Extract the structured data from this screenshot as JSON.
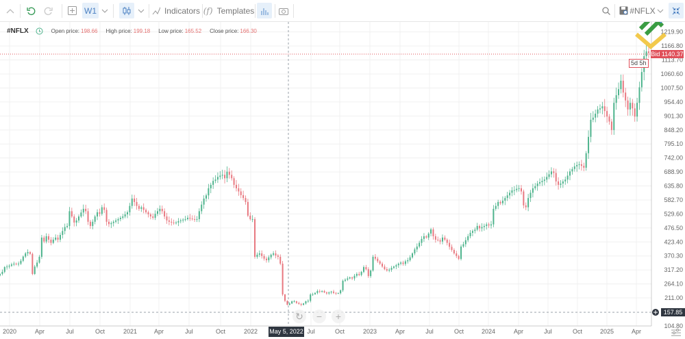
{
  "toolbar": {
    "timeframe": "W1",
    "indicators_label": "Indicators",
    "templates_label": "Templates",
    "symbol_selector": "#NFLX",
    "icons": [
      "chevron-up-icon",
      "undo-icon",
      "redo-icon",
      "add-icon",
      "chevron-down-icon",
      "candlestick-icon",
      "indicators-icon",
      "templates-icon",
      "bar-chart-icon",
      "camera-icon",
      "search-icon",
      "save-icon",
      "compress-icon"
    ]
  },
  "info": {
    "symbol": "#NFLX",
    "open_label": "Open price:",
    "open": "198.66",
    "high_label": "High price:",
    "high": "199.18",
    "low_label": "Low price:",
    "low": "165.52",
    "close_label": "Close price:",
    "close": "166.30"
  },
  "bid": {
    "label": "Bid 1140.37",
    "price": 1140.37,
    "timer": "5d 5h",
    "color": "#e0505a"
  },
  "crosshair": {
    "price": "157.85",
    "date": "May 5, 2022"
  },
  "colors": {
    "up": "#4db38c",
    "down": "#e8777f",
    "grid": "#f0f0f0"
  },
  "chart_data": {
    "type": "candlestick",
    "timeframe": "weekly",
    "ylim": [
      104.8,
      1219.9
    ],
    "y_ticks": [
      "1219.90",
      "1166.80",
      "1113.70",
      "1060.60",
      "1007.50",
      "954.40",
      "901.30",
      "848.20",
      "795.10",
      "742.00",
      "688.90",
      "635.80",
      "582.70",
      "529.60",
      "476.50",
      "423.40",
      "370.30",
      "317.20",
      "264.10",
      "211.00",
      "104.80"
    ],
    "x_ticks": [
      "2020",
      "Apr",
      "Jul",
      "Oct",
      "2021",
      "Apr",
      "Jul",
      "Oct",
      "2022",
      "Jul",
      "Oct",
      "2023",
      "Apr",
      "Jul",
      "Oct",
      "2024",
      "Apr",
      "Jul",
      "Oct",
      "2025",
      "Apr"
    ],
    "grid": true,
    "weekly_closes_by_year": {
      "2019": [
        302,
        310,
        328,
        330
      ],
      "2020": [
        333,
        338,
        341,
        339,
        341,
        352,
        368,
        380,
        385,
        378,
        302,
        330,
        345,
        367,
        440,
        425,
        445,
        432,
        420,
        432,
        440,
        432,
        450,
        465,
        480,
        484,
        540,
        520,
        497,
        505,
        520,
        535,
        549,
        540,
        500,
        484,
        500,
        520,
        536,
        530,
        555,
        545,
        500,
        491,
        495,
        500,
        505,
        510,
        515,
        520,
        528,
        536
      ],
      "2021": [
        560,
        588,
        575,
        560,
        549,
        555,
        545,
        536,
        528,
        520,
        515,
        530,
        540,
        549,
        540,
        520,
        505,
        500,
        497,
        495,
        497,
        502,
        505,
        508,
        510,
        515,
        512,
        510,
        508,
        510,
        540,
        565,
        588,
        600,
        627,
        640,
        655,
        660,
        670,
        675,
        678,
        665,
        690,
        678,
        665,
        640,
        627,
        615,
        601,
        590,
        575,
        523
      ],
      "2022": [
        510,
        510,
        367,
        375,
        380,
        370,
        360,
        354,
        365,
        375,
        380,
        372,
        367,
        341,
        224,
        200,
        185,
        190,
        198,
        198,
        192,
        188,
        185,
        190,
        198,
        200,
        224,
        225,
        230,
        237,
        235,
        237,
        232,
        228,
        232,
        235,
        230,
        229,
        229,
        240,
        276,
        280,
        285,
        289,
        285,
        295,
        302,
        298,
        310,
        328,
        320,
        294
      ],
      "2023": [
        315,
        367,
        360,
        350,
        341,
        330,
        320,
        315,
        318,
        325,
        330,
        335,
        341,
        345,
        340,
        350,
        354,
        365,
        380,
        395,
        406,
        420,
        435,
        445,
        440,
        455,
        471,
        445,
        432,
        430,
        425,
        440,
        432,
        420,
        405,
        393,
        380,
        370,
        359,
        406,
        415,
        430,
        445,
        458,
        465,
        470,
        484,
        475,
        480,
        484,
        490,
        486
      ],
      "2024": [
        490,
        549,
        560,
        575,
        570,
        580,
        590,
        600,
        610,
        619,
        620,
        625,
        627,
        615,
        562,
        555,
        590,
        610,
        627,
        635,
        645,
        650,
        655,
        660,
        670,
        680,
        691,
        685,
        653,
        640,
        645,
        653,
        660,
        675,
        691,
        700,
        710,
        715,
        718,
        712,
        705,
        760,
        822,
        887,
        895,
        910,
        926,
        930,
        938,
        920,
        899,
        880
      ],
      "2025": [
        848,
        951,
        980,
        1003,
        1035,
        990,
        960,
        926,
        951,
        930,
        899,
        951,
        1010,
        1068,
        1128,
        1146,
        1140.37
      ]
    }
  }
}
